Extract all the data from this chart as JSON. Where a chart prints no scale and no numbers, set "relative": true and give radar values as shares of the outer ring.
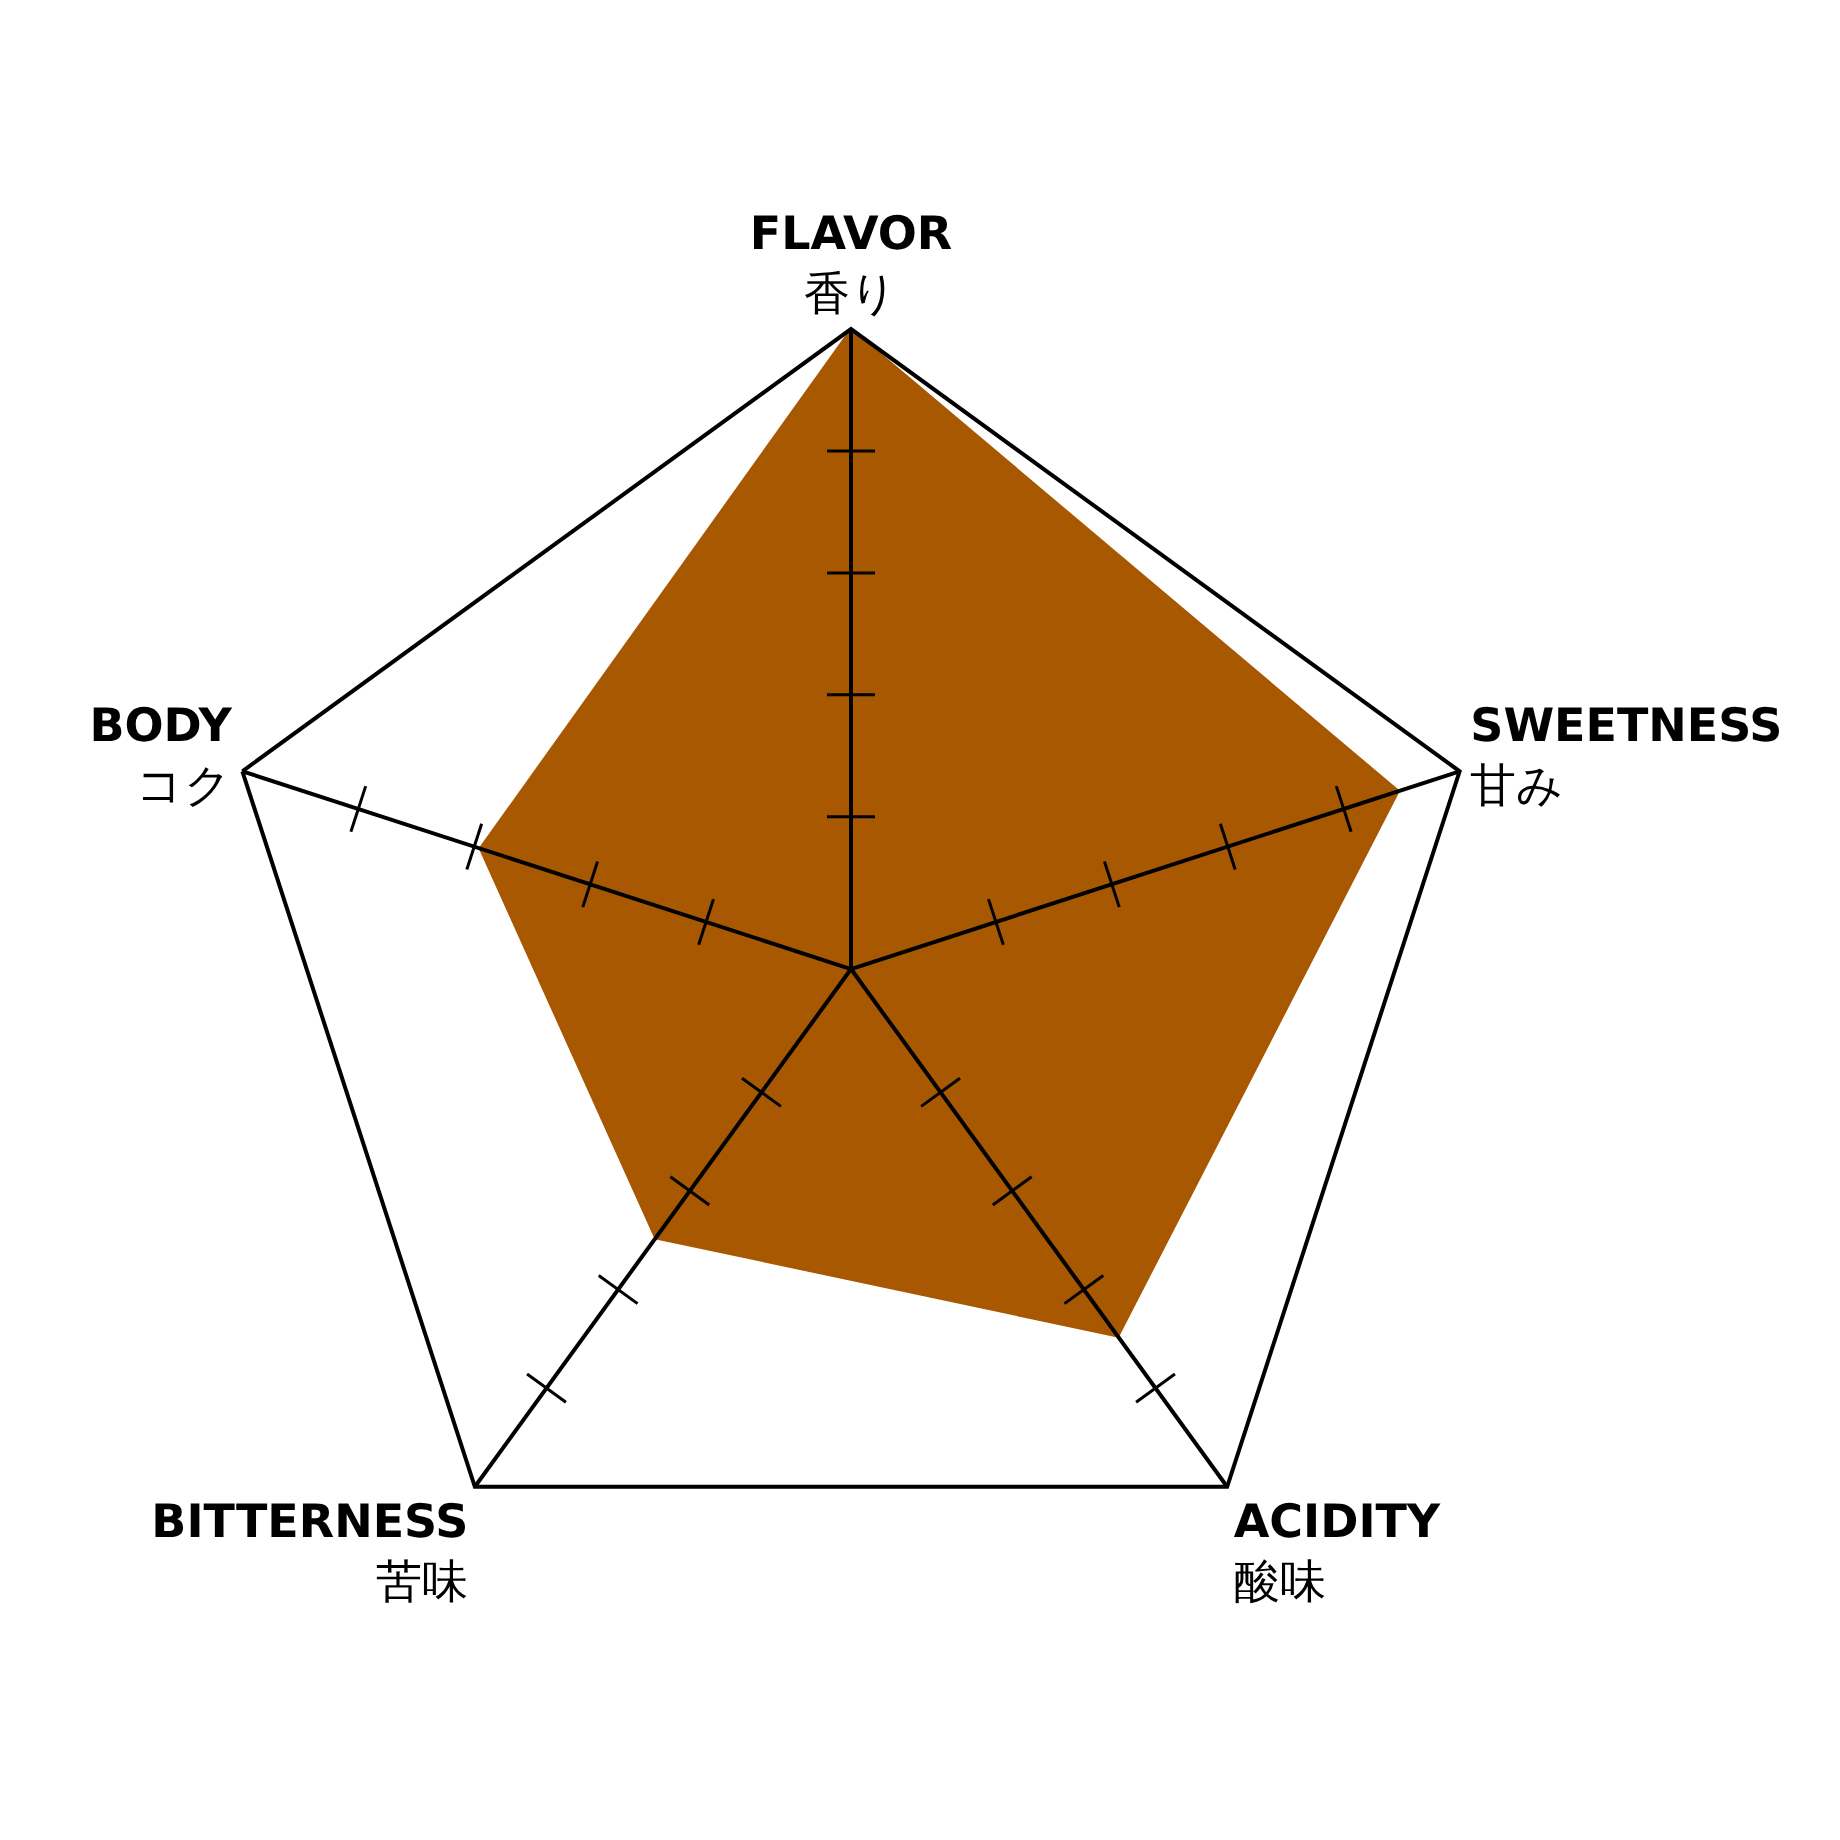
{
  "chart_data": {
    "type": "radar",
    "relative": true,
    "grid": "x",
    "categories": [
      "FLAVOR\n香り",
      "SWEETNESS\n甘み",
      "ACIDITY\n酸味",
      "BITTERNESS\n苦味",
      "BODY\nコク"
    ],
    "series": [
      {
        "color": "#a85800",
        "values": [
          1,
          0.9,
          0.71,
          0.52,
          0.61
        ]
      }
    ]
  }
}
